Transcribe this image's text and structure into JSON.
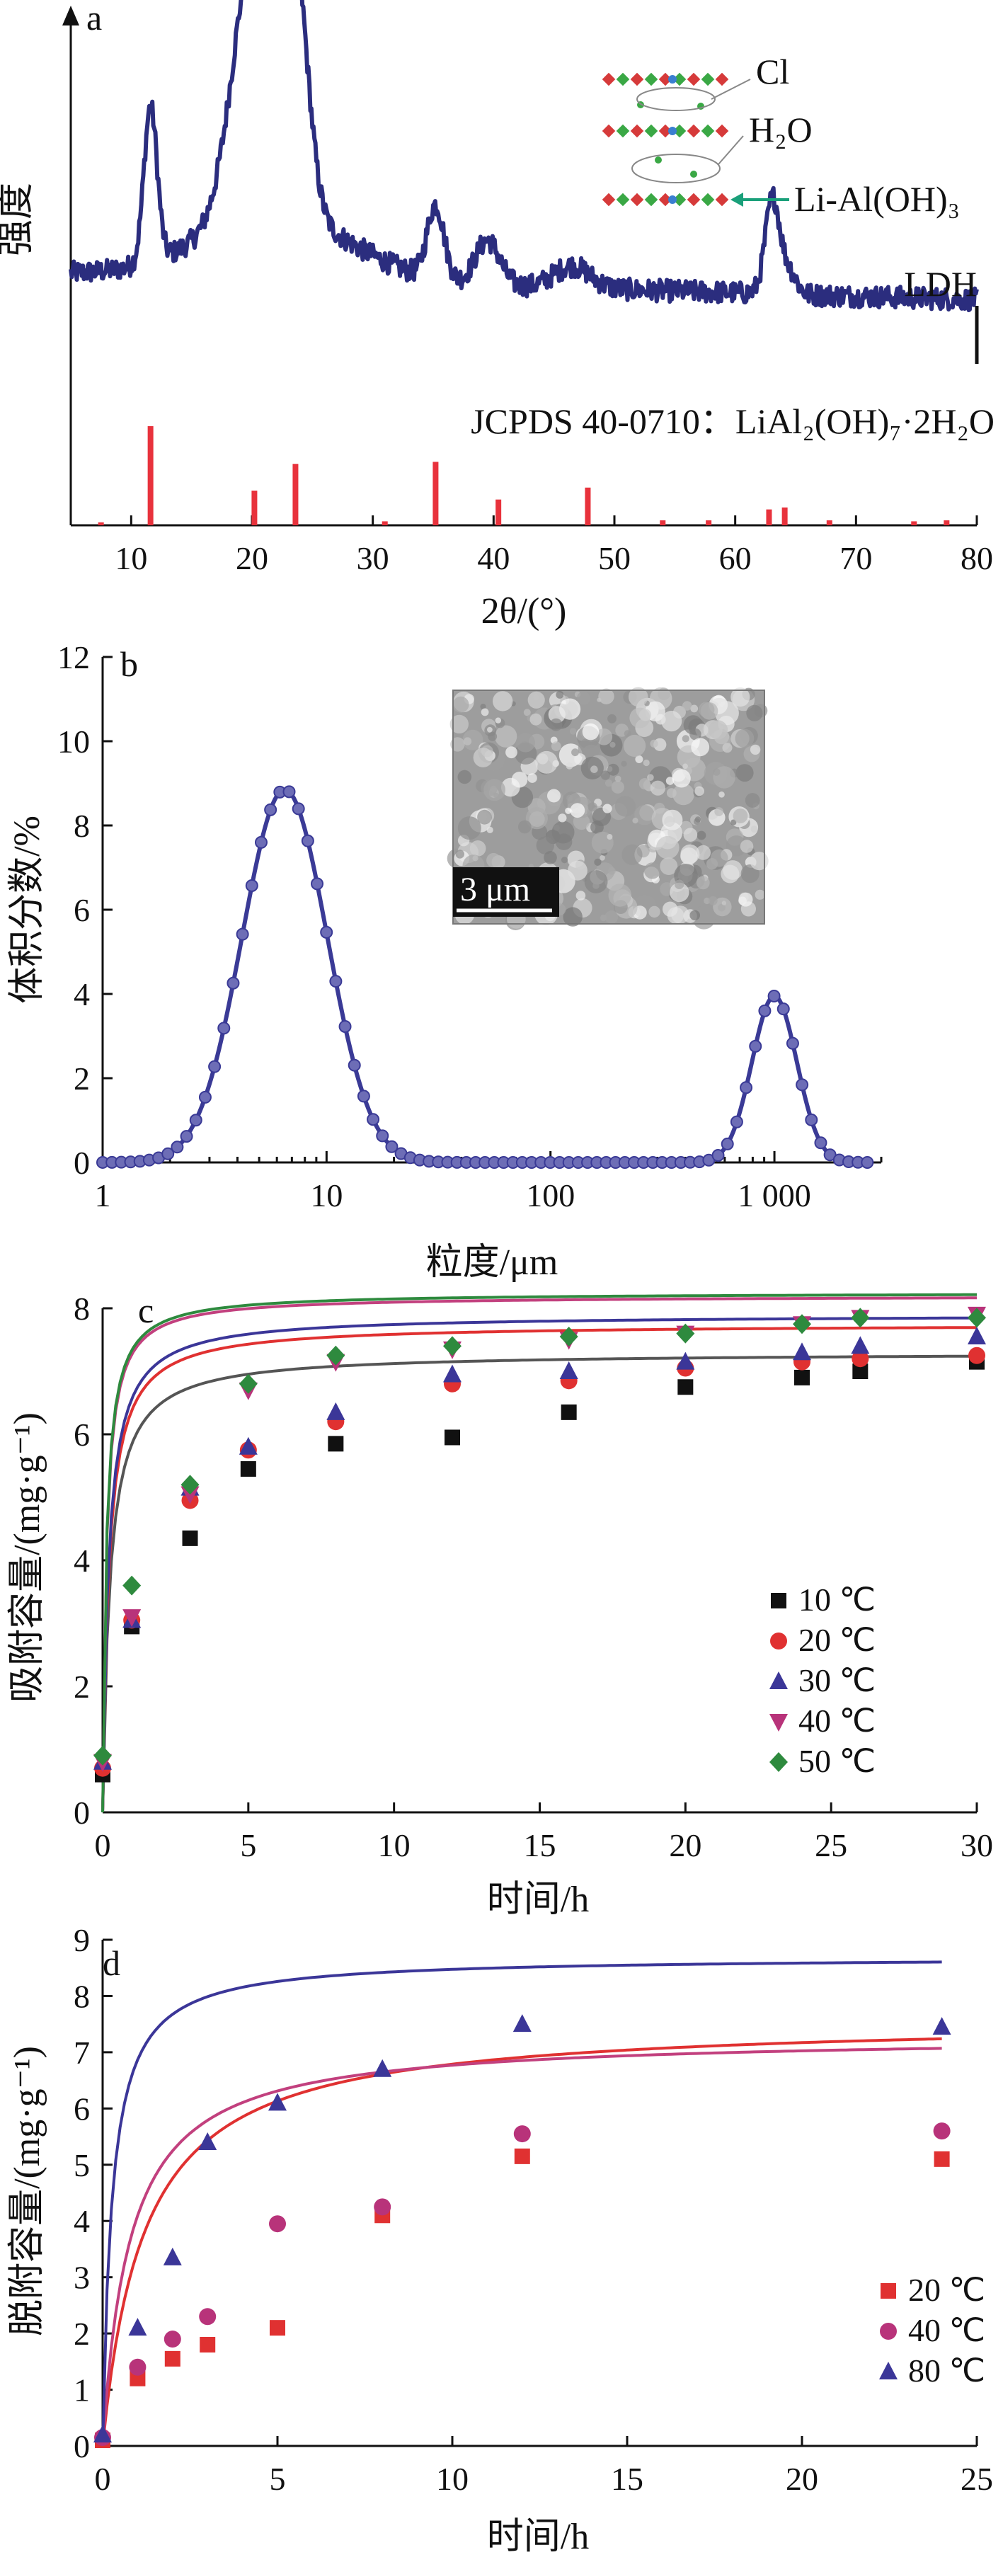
{
  "colors": {
    "xrd_trace": "#2b2d7e",
    "ref_bar": "#e8323c",
    "psd_line": "#3a3a96",
    "psd_marker": "#6d6db6",
    "arrow": "#1aa07a",
    "series": {
      "10": "#111111",
      "20": "#e03131",
      "30": "#3b3698",
      "40": "#b8337a",
      "50": "#2e8a3e",
      "80": "#3b3698"
    },
    "fits": {
      "10": "#555555",
      "20": "#e03131",
      "30": "#3b3698",
      "40": "#c2407e",
      "50": "#2e8a3e"
    }
  },
  "chart_data": [
    {
      "panel": "a",
      "type": "line",
      "xlabel": "2θ/(°)",
      "ylabel": "强度",
      "xlim": [
        5,
        80
      ],
      "xticks": [
        10,
        20,
        30,
        40,
        50,
        60,
        70,
        80
      ],
      "labels": {
        "trace": "LDH",
        "reference": "JCPDS 40-0710：LiAl₂(OH)₇·2H₂O"
      },
      "structure_labels": [
        "Cl",
        "H₂O",
        "Li-Al(OH)₃"
      ],
      "trace_peaks": [
        {
          "x": 11.6,
          "h": 0.42,
          "w": 0.55
        },
        {
          "x": 20.3,
          "h": 0.75,
          "w": 1.8
        },
        {
          "x": 23.5,
          "h": 0.62,
          "w": 1.1
        },
        {
          "x": 35.2,
          "h": 0.2,
          "w": 0.7
        },
        {
          "x": 39.5,
          "h": 0.12,
          "w": 1.0
        },
        {
          "x": 46.5,
          "h": 0.06,
          "w": 1.5
        },
        {
          "x": 63.1,
          "h": 0.26,
          "w": 0.6
        },
        {
          "x": 64.5,
          "h": 0.06,
          "w": 0.6
        }
      ],
      "reference_lines": [
        {
          "x": 7.5,
          "i": 0.03
        },
        {
          "x": 11.6,
          "i": 1.0
        },
        {
          "x": 20.2,
          "i": 0.35
        },
        {
          "x": 23.6,
          "i": 0.62
        },
        {
          "x": 31.0,
          "i": 0.04
        },
        {
          "x": 35.2,
          "i": 0.64
        },
        {
          "x": 40.4,
          "i": 0.26
        },
        {
          "x": 47.8,
          "i": 0.38
        },
        {
          "x": 54.0,
          "i": 0.05
        },
        {
          "x": 57.8,
          "i": 0.05
        },
        {
          "x": 62.8,
          "i": 0.16
        },
        {
          "x": 64.1,
          "i": 0.18
        },
        {
          "x": 67.8,
          "i": 0.05
        },
        {
          "x": 74.8,
          "i": 0.04
        },
        {
          "x": 77.5,
          "i": 0.05
        }
      ]
    },
    {
      "panel": "b",
      "type": "line",
      "xscale": "log",
      "xlabel": "粒度/μm",
      "ylabel": "体积分数/%",
      "xlim": [
        1,
        3000
      ],
      "ylim": [
        0,
        12
      ],
      "xticks": [
        1,
        10,
        100,
        1000
      ],
      "xticklabels": [
        "1",
        "10",
        "100",
        "1 000"
      ],
      "yticks": [
        0,
        2,
        4,
        6,
        8,
        10,
        12
      ],
      "inset_label": "3 μm",
      "peaks": [
        {
          "center": 6.5,
          "height": 8.85,
          "sigma_log10": 0.19
        },
        {
          "center": 1000,
          "height": 3.95,
          "sigma_log10": 0.1
        }
      ]
    },
    {
      "panel": "c",
      "type": "scatter",
      "xlabel": "时间/h",
      "ylabel": "吸附容量/(mg·g⁻¹)",
      "xlim": [
        0,
        30
      ],
      "ylim": [
        0,
        8
      ],
      "xticks": [
        0,
        5,
        10,
        15,
        20,
        25,
        30
      ],
      "yticks": [
        0,
        2,
        4,
        6,
        8
      ],
      "legend_position": "bottom-right",
      "series": [
        {
          "name": "10 ℃",
          "key": "10",
          "marker": "square",
          "points": [
            [
              0,
              0.6
            ],
            [
              1,
              2.95
            ],
            [
              3,
              4.35
            ],
            [
              5,
              5.45
            ],
            [
              8,
              5.85
            ],
            [
              12,
              5.95
            ],
            [
              16,
              6.35
            ],
            [
              20,
              6.75
            ],
            [
              24,
              6.9
            ],
            [
              26,
              7.0
            ],
            [
              30,
              7.15
            ]
          ],
          "fit": {
            "qe": 7.3,
            "k": 0.55
          }
        },
        {
          "name": "20 ℃",
          "key": "20",
          "marker": "circle",
          "points": [
            [
              0,
              0.7
            ],
            [
              1,
              3.05
            ],
            [
              3,
              4.95
            ],
            [
              5,
              5.75
            ],
            [
              8,
              6.2
            ],
            [
              12,
              6.8
            ],
            [
              16,
              6.85
            ],
            [
              20,
              7.05
            ],
            [
              24,
              7.15
            ],
            [
              26,
              7.2
            ],
            [
              30,
              7.25
            ]
          ],
          "fit": {
            "qe": 7.75,
            "k": 0.6
          }
        },
        {
          "name": "30 ℃",
          "key": "30",
          "marker": "triangle",
          "points": [
            [
              0,
              0.8
            ],
            [
              1,
              3.05
            ],
            [
              3,
              5.15
            ],
            [
              5,
              5.8
            ],
            [
              8,
              6.35
            ],
            [
              12,
              6.95
            ],
            [
              16,
              7.0
            ],
            [
              20,
              7.15
            ],
            [
              24,
              7.3
            ],
            [
              26,
              7.4
            ],
            [
              30,
              7.55
            ]
          ],
          "fit": {
            "qe": 7.9,
            "k": 0.62
          }
        },
        {
          "name": "40 ℃",
          "key": "40",
          "marker": "tri-down",
          "points": [
            [
              0,
              0.8
            ],
            [
              1,
              3.1
            ],
            [
              3,
              5.05
            ],
            [
              5,
              6.7
            ],
            [
              8,
              7.15
            ],
            [
              12,
              7.35
            ],
            [
              16,
              7.5
            ],
            [
              20,
              7.6
            ],
            [
              24,
              7.75
            ],
            [
              26,
              7.85
            ],
            [
              30,
              7.9
            ]
          ],
          "fit": {
            "qe": 8.2,
            "k": 0.95
          }
        },
        {
          "name": "50 ℃",
          "key": "50",
          "marker": "diamond",
          "points": [
            [
              0,
              0.9
            ],
            [
              1,
              3.6
            ],
            [
              3,
              5.2
            ],
            [
              5,
              6.8
            ],
            [
              8,
              7.25
            ],
            [
              12,
              7.4
            ],
            [
              16,
              7.55
            ],
            [
              20,
              7.6
            ],
            [
              24,
              7.75
            ],
            [
              26,
              7.85
            ],
            [
              30,
              7.85
            ]
          ],
          "fit": {
            "qe": 8.25,
            "k": 0.97
          }
        }
      ]
    },
    {
      "panel": "d",
      "type": "scatter",
      "xlabel": "时间/h",
      "ylabel": "脱附容量/(mg·g⁻¹)",
      "xlim": [
        0,
        25
      ],
      "ylim": [
        0,
        9
      ],
      "xticks": [
        0,
        5,
        10,
        15,
        20,
        25
      ],
      "yticks": [
        0,
        1,
        2,
        3,
        4,
        5,
        6,
        7,
        8,
        9
      ],
      "legend_position": "bottom-right",
      "series": [
        {
          "name": "20 ℃",
          "key": "20",
          "marker": "square",
          "points": [
            [
              0,
              0.1
            ],
            [
              1,
              1.2
            ],
            [
              2,
              1.55
            ],
            [
              3,
              1.8
            ],
            [
              5,
              2.1
            ],
            [
              8,
              4.1
            ],
            [
              12,
              5.15
            ],
            [
              24,
              5.1
            ]
          ],
          "fit": {
            "qe": 7.6,
            "k": 0.11
          }
        },
        {
          "name": "40 ℃",
          "key": "40",
          "marker": "circle",
          "points": [
            [
              0,
              0.15
            ],
            [
              1,
              1.4
            ],
            [
              2,
              1.9
            ],
            [
              3,
              2.3
            ],
            [
              5,
              3.95
            ],
            [
              8,
              4.25
            ],
            [
              12,
              5.55
            ],
            [
              24,
              5.6
            ]
          ],
          "fit": {
            "qe": 7.3,
            "k": 0.175
          }
        },
        {
          "name": "80 ℃",
          "key": "80",
          "marker": "triangle",
          "points": [
            [
              0,
              0.2
            ],
            [
              1,
              2.1
            ],
            [
              2,
              3.35
            ],
            [
              3,
              5.4
            ],
            [
              5,
              6.1
            ],
            [
              8,
              6.7
            ],
            [
              12,
              7.5
            ],
            [
              24,
              7.45
            ]
          ],
          "fit": {
            "qe": 8.7,
            "k": 0.43
          }
        }
      ]
    }
  ]
}
